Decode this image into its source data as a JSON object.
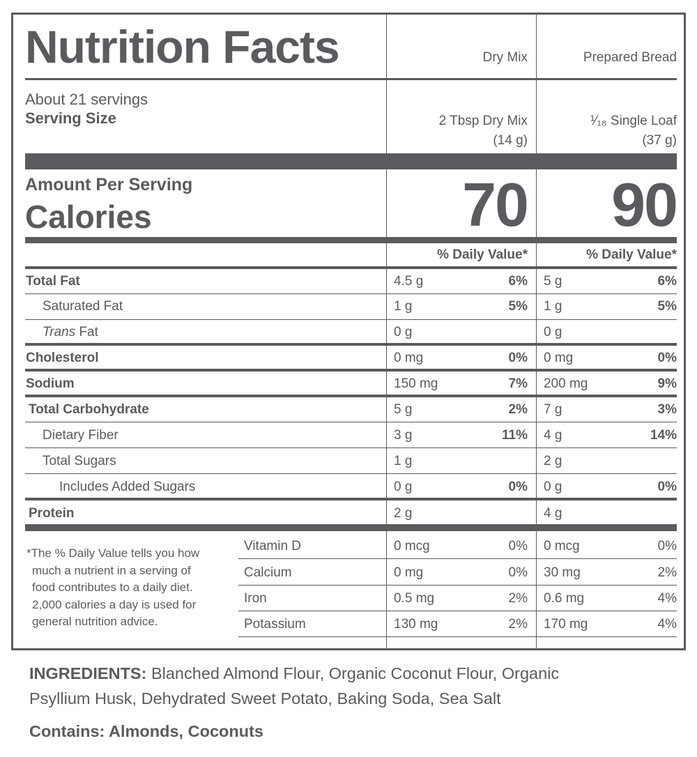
{
  "title": "Nutrition Facts",
  "columns": [
    "Dry Mix",
    "Prepared Bread"
  ],
  "servings": "About 21 servings",
  "serving_size_label": "Serving Size",
  "serving_sizes": [
    {
      "line1": "2 Tbsp Dry Mix",
      "line2": "(14 g)"
    },
    {
      "line1": "¹⁄₁₈ Single Loaf",
      "line2": "(37 g)"
    }
  ],
  "amount_per_serving": "Amount Per Serving",
  "calories_label": "Calories",
  "calories": [
    "70",
    "90"
  ],
  "dv_header": "% Daily Value*",
  "nutrients": [
    {
      "name": "Total Fat",
      "bold": true,
      "indent": 0,
      "cells": [
        {
          "amt": "4.5 g",
          "dv": "6%"
        },
        {
          "amt": "5 g",
          "dv": "6%"
        }
      ]
    },
    {
      "name": "Saturated Fat",
      "bold": false,
      "indent": 1,
      "cells": [
        {
          "amt": "1 g",
          "dv": "5%"
        },
        {
          "amt": "1 g",
          "dv": "5%"
        }
      ]
    },
    {
      "name_italic": "Trans",
      "name": " Fat",
      "bold": false,
      "indent": 1,
      "cells": [
        {
          "amt": "0 g",
          "dv": ""
        },
        {
          "amt": "0 g",
          "dv": ""
        }
      ]
    },
    {
      "name": "Cholesterol",
      "bold": true,
      "indent": 0,
      "cells": [
        {
          "amt": "0 mg",
          "dv": "0%"
        },
        {
          "amt": "0 mg",
          "dv": "0%"
        }
      ]
    },
    {
      "name": "Sodium",
      "bold": true,
      "indent": 0,
      "cells": [
        {
          "amt": "150 mg",
          "dv": "7%"
        },
        {
          "amt": "200 mg",
          "dv": "9%"
        }
      ]
    },
    {
      "name": "Total Carbohydrate",
      "bold": true,
      "indent": 0,
      "cells": [
        {
          "amt": "5 g",
          "dv": "2%"
        },
        {
          "amt": "7 g",
          "dv": "3%"
        }
      ]
    },
    {
      "name": "Dietary Fiber",
      "bold": false,
      "indent": 1,
      "cells": [
        {
          "amt": "3 g",
          "dv": "11%"
        },
        {
          "amt": "4 g",
          "dv": "14%"
        }
      ]
    },
    {
      "name": "Total Sugars",
      "bold": false,
      "indent": 1,
      "cells": [
        {
          "amt": "1 g",
          "dv": ""
        },
        {
          "amt": "2 g",
          "dv": ""
        }
      ]
    },
    {
      "name": "Includes Added Sugars",
      "bold": false,
      "indent": 2,
      "cells": [
        {
          "amt": "0 g",
          "dv": "0%"
        },
        {
          "amt": "0 g",
          "dv": "0%"
        }
      ]
    },
    {
      "name": "Protein",
      "bold": true,
      "indent": 0,
      "cells": [
        {
          "amt": "2 g",
          "dv": ""
        },
        {
          "amt": "4 g",
          "dv": ""
        }
      ]
    }
  ],
  "footnote": [
    "*The % Daily Value tells you how",
    "much a nutrient in a serving of",
    "food contributes to a daily diet.",
    "2,000 calories a day is used for",
    "general nutrition advice."
  ],
  "vitamins": [
    {
      "name": "Vitamin D",
      "cells": [
        {
          "amt": "0 mcg",
          "dv": "0%"
        },
        {
          "amt": "0 mcg",
          "dv": "0%"
        }
      ]
    },
    {
      "name": "Calcium",
      "cells": [
        {
          "amt": "0 mg",
          "dv": "0%"
        },
        {
          "amt": "30 mg",
          "dv": "2%"
        }
      ]
    },
    {
      "name": "Iron",
      "cells": [
        {
          "amt": "0.5 mg",
          "dv": "2%"
        },
        {
          "amt": "0.6 mg",
          "dv": "4%"
        }
      ]
    },
    {
      "name": "Potassium",
      "cells": [
        {
          "amt": "130 mg",
          "dv": "2%"
        },
        {
          "amt": "170 mg",
          "dv": "4%"
        }
      ]
    }
  ],
  "ingredients_label": "INGREDIENTS:",
  "ingredients_line1": "Blanched Almond Flour, Organic Coconut Flour, Organic",
  "ingredients_line2": "Psyllium Husk, Dehydrated Sweet Potato, Baking Soda, Sea Salt",
  "contains_label": "Contains:",
  "contains_value": "Almonds, Coconuts",
  "colors": {
    "ink": "#5a5b5e",
    "background": "#ffffff"
  }
}
